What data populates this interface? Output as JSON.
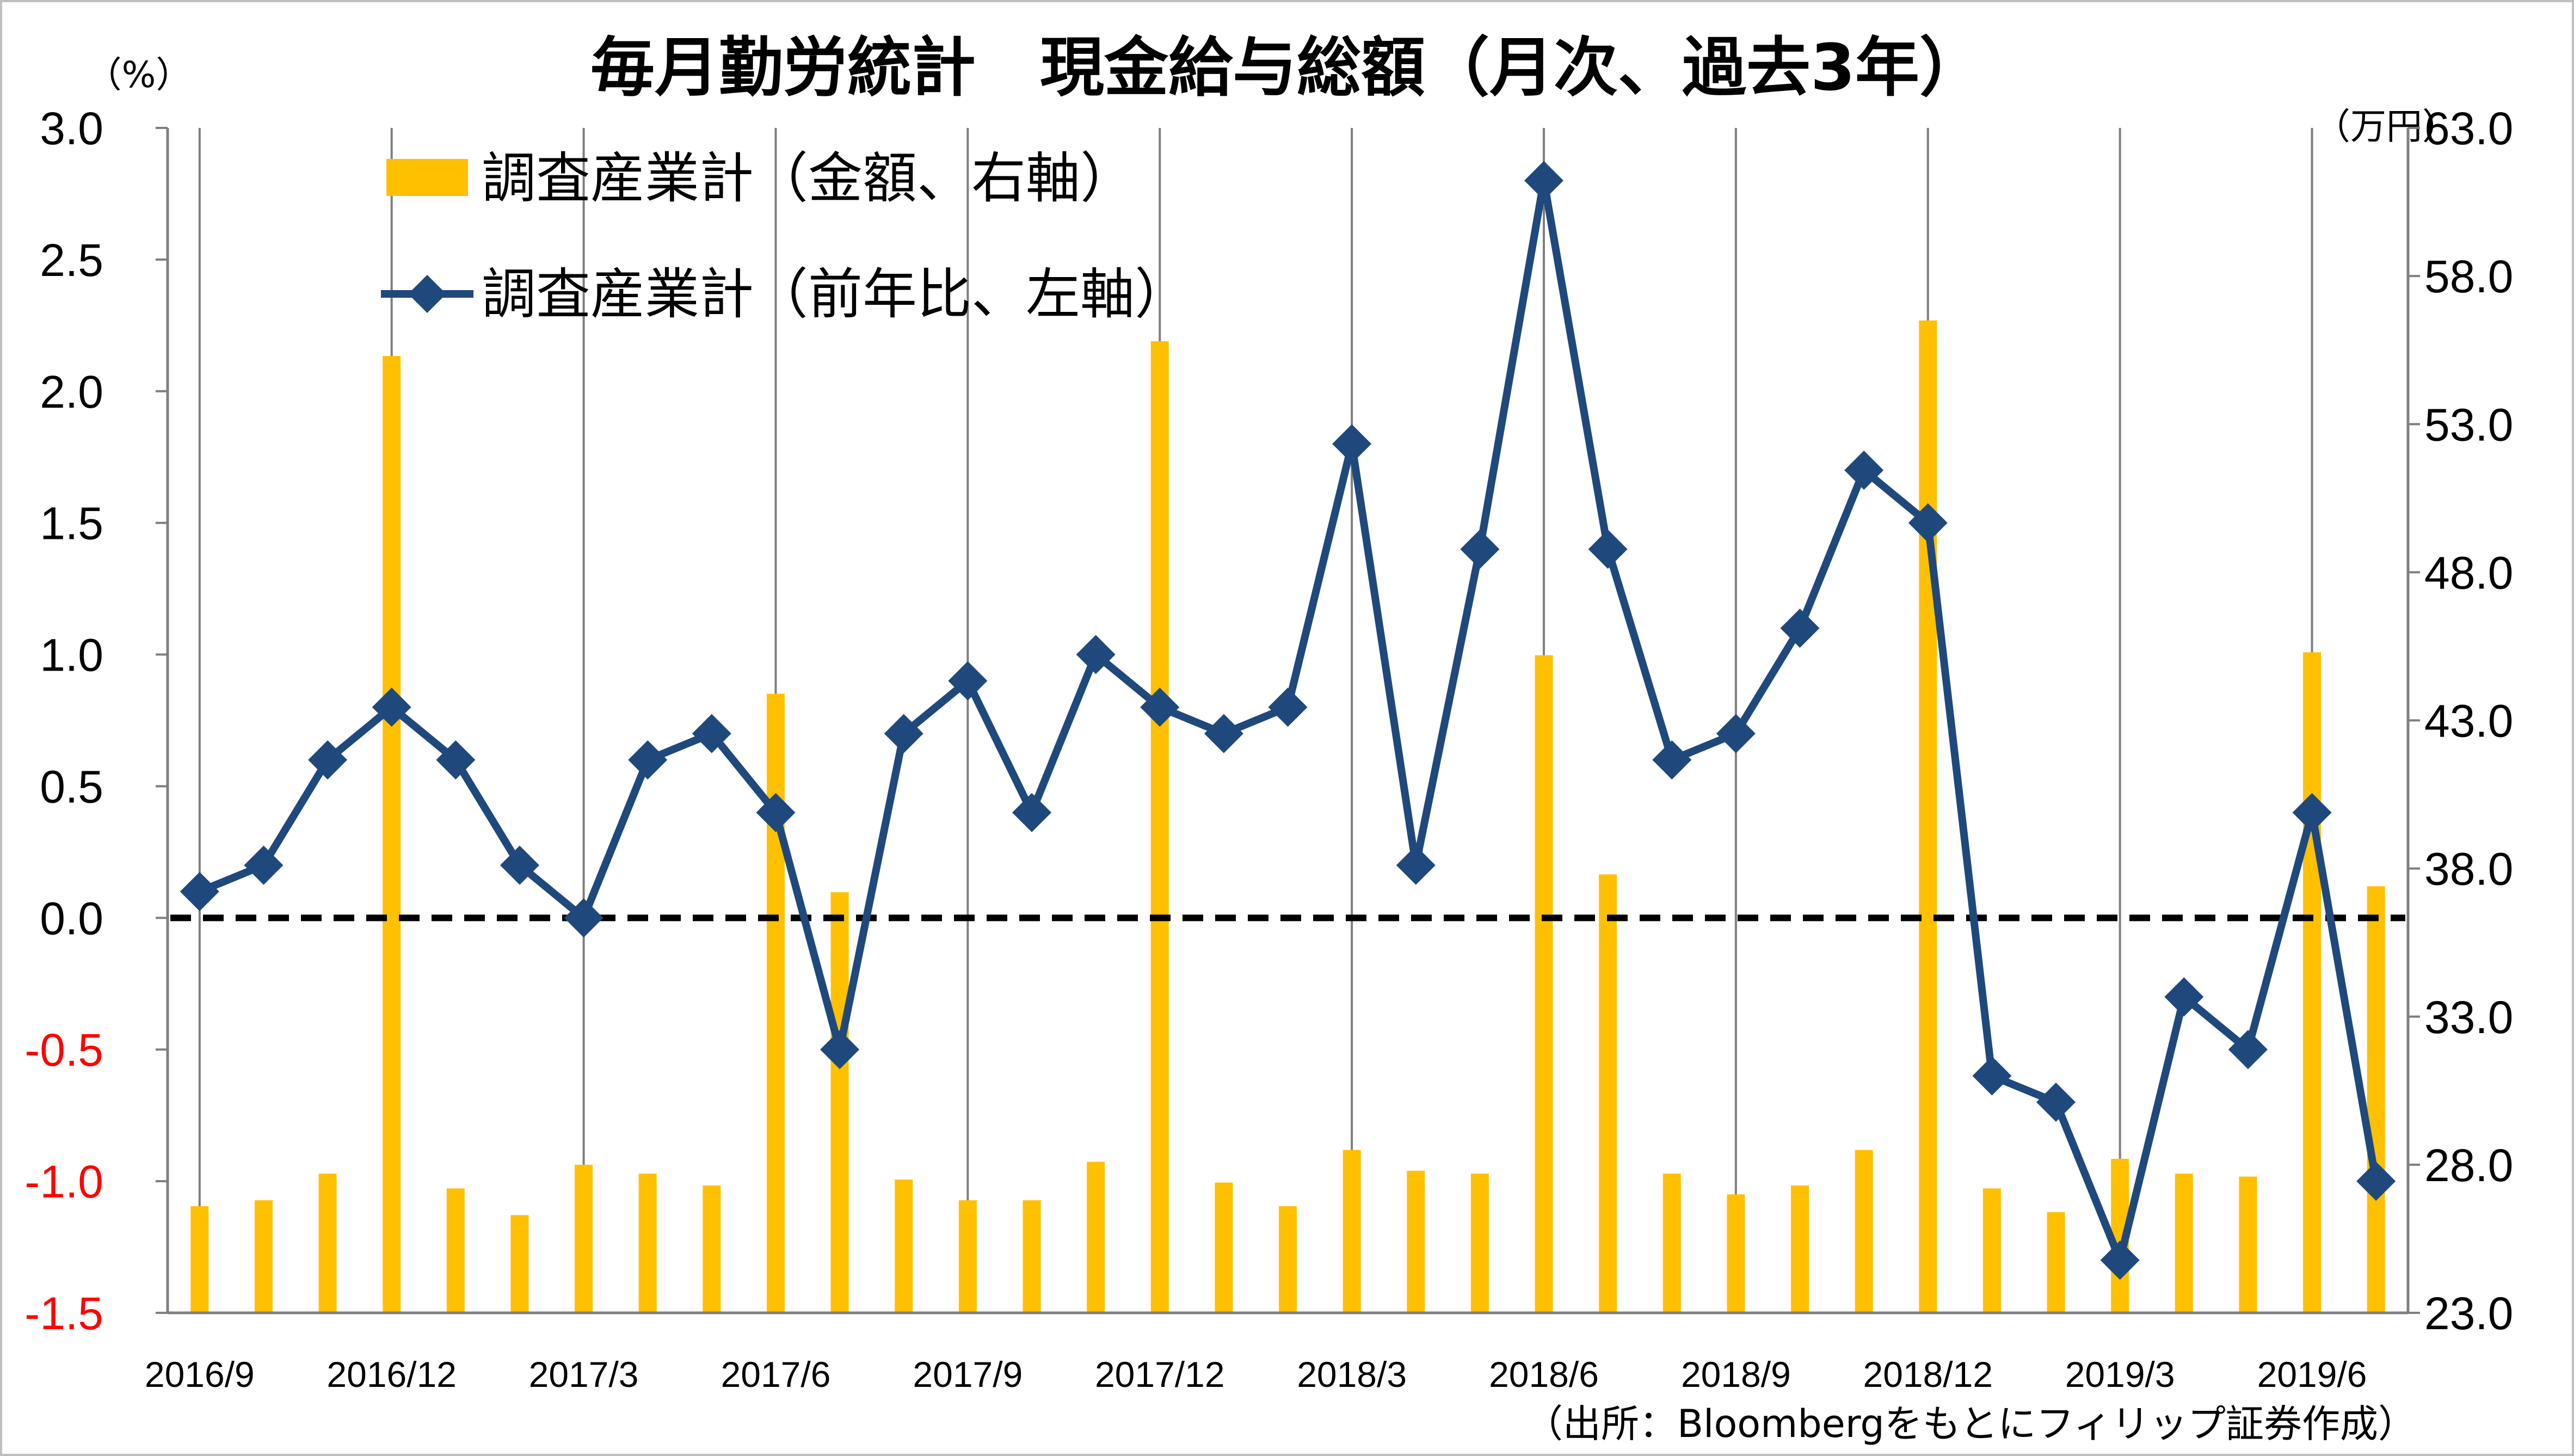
{
  "chart_data": {
    "type": "bar+line",
    "title": "毎月勤労統計　現金給与総額（月次、過去3年）",
    "left_axis_unit": "（%）",
    "right_axis_unit": "（万円）",
    "source": "（出所：Bloombergをもとにフィリップ証券作成）",
    "categories": [
      "2016/9",
      "2016/10",
      "2016/11",
      "2016/12",
      "2017/1",
      "2017/2",
      "2017/3",
      "2017/4",
      "2017/5",
      "2017/6",
      "2017/7",
      "2017/8",
      "2017/9",
      "2017/10",
      "2017/11",
      "2017/12",
      "2018/1",
      "2018/2",
      "2018/3",
      "2018/4",
      "2018/5",
      "2018/6",
      "2018/7",
      "2018/8",
      "2018/9",
      "2018/10",
      "2018/11",
      "2018/12",
      "2019/1",
      "2019/2",
      "2019/3",
      "2019/4",
      "2019/5",
      "2019/6",
      "2019/7"
    ],
    "x_tick_labels": [
      "2016/9",
      "2016/12",
      "2017/3",
      "2017/6",
      "2017/9",
      "2017/12",
      "2018/3",
      "2018/6",
      "2018/9",
      "2018/12",
      "2019/3",
      "2019/6"
    ],
    "left_ylim": [
      -1.5,
      3.0
    ],
    "left_yticks": [
      "3.0",
      "2.5",
      "2.0",
      "1.5",
      "1.0",
      "0.5",
      "0.0",
      "-0.5",
      "-1.0",
      "-1.5"
    ],
    "right_ylim": [
      23.0,
      63.0
    ],
    "right_yticks": [
      "63.0",
      "58.0",
      "53.0",
      "48.0",
      "43.0",
      "38.0",
      "33.0",
      "28.0",
      "23.0"
    ],
    "negative_tick_color": "#ff0000",
    "reference_line_y": 0.0,
    "series": [
      {
        "name": "調査産業計（金額、右軸）",
        "type": "bar",
        "axis": "right",
        "color": "#ffc000",
        "values": [
          26.6,
          26.8,
          27.7,
          55.3,
          27.2,
          26.3,
          28.0,
          27.7,
          27.3,
          43.9,
          37.2,
          27.5,
          26.8,
          26.8,
          28.1,
          55.8,
          27.4,
          26.6,
          28.5,
          27.8,
          27.7,
          45.2,
          37.8,
          27.7,
          27.0,
          27.3,
          28.5,
          56.5,
          27.2,
          26.4,
          28.2,
          27.7,
          27.6,
          45.3,
          37.4
        ]
      },
      {
        "name": "調査産業計（前年比、左軸）",
        "type": "line",
        "axis": "left",
        "color": "#1f497d",
        "marker": "diamond",
        "values": [
          0.1,
          0.2,
          0.6,
          0.8,
          0.6,
          0.2,
          0.0,
          0.6,
          0.7,
          0.4,
          -0.5,
          0.7,
          0.9,
          0.4,
          1.0,
          0.8,
          0.7,
          0.8,
          1.8,
          0.2,
          1.4,
          2.8,
          1.4,
          0.6,
          0.7,
          1.1,
          1.7,
          1.5,
          -0.6,
          -0.7,
          -1.3,
          -0.3,
          -0.5,
          0.4,
          -1.0
        ]
      }
    ],
    "legend_position": "top-left",
    "vertical_gridlines": "at labeled ticks"
  }
}
